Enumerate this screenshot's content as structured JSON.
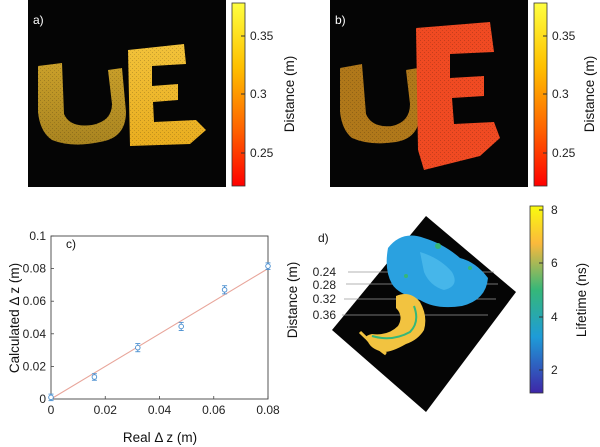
{
  "panels": {
    "a": {
      "label": "a)",
      "colorbar": {
        "title": "Distance (m)",
        "ticks": [
          "0.35",
          "0.3",
          "0.25"
        ],
        "colors": [
          "#ffff40",
          "#ffc000",
          "#ff6000",
          "#ff0000"
        ]
      },
      "letters": [
        "U",
        "E"
      ]
    },
    "b": {
      "label": "b)",
      "colorbar": {
        "title": "Distance (m)",
        "ticks": [
          "0.35",
          "0.3",
          "0.25"
        ],
        "colors": [
          "#ffff40",
          "#ffc000",
          "#ff6000",
          "#ff0000"
        ]
      },
      "letters": [
        "U",
        "E"
      ]
    },
    "c": {
      "label": "c)"
    },
    "d": {
      "label": "d)",
      "axis_title": "Distance (m)",
      "axis_ticks": [
        "0.24",
        "0.28",
        "0.32",
        "0.36"
      ],
      "colorbar": {
        "title": "Lifetime (ns)",
        "ticks": [
          "8",
          "6",
          "4",
          "2"
        ],
        "colors": [
          "#f9fb0e",
          "#fbb93c",
          "#35b779",
          "#1e9cd8",
          "#3e26a8"
        ]
      }
    }
  },
  "chart_data": {
    "type": "scatter",
    "xlabel": "Real Δ z (m)",
    "ylabel": "Calculated Δ z (m)",
    "xlim": [
      0,
      0.08
    ],
    "ylim": [
      0,
      0.1
    ],
    "xticks": [
      "0",
      "0.02",
      "0.04",
      "0.06",
      "0.08"
    ],
    "yticks": [
      "0",
      "0.02",
      "0.04",
      "0.06",
      "0.08",
      "0.1"
    ],
    "points": [
      {
        "x": 0.0,
        "y": 0.001,
        "err": 0.002
      },
      {
        "x": 0.016,
        "y": 0.0135,
        "err": 0.002
      },
      {
        "x": 0.032,
        "y": 0.0315,
        "err": 0.0025
      },
      {
        "x": 0.048,
        "y": 0.0445,
        "err": 0.0025
      },
      {
        "x": 0.064,
        "y": 0.067,
        "err": 0.0025
      },
      {
        "x": 0.08,
        "y": 0.0815,
        "err": 0.002
      }
    ],
    "fit_line": {
      "x": [
        0,
        0.08
      ],
      "y": [
        0,
        0.08
      ]
    },
    "point_color": "#4a8fd0",
    "line_color": "#e8a59a"
  }
}
